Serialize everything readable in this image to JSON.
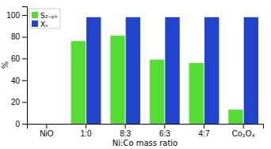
{
  "chart_data": {
    "type": "bar",
    "categories": [
      "NiO",
      "1:0",
      "8:3",
      "6:3",
      "4:7",
      "Co₃O₄"
    ],
    "series": [
      {
        "name": "S₂₋ₚₕ",
        "color": "#55dd33",
        "values": [
          0,
          76,
          81,
          59,
          56,
          13
        ]
      },
      {
        "name": "Xᵥ",
        "color": "#2244cc",
        "values": [
          0,
          98,
          98,
          98,
          98,
          98
        ]
      }
    ],
    "xlabel": "Ni:Co mass ratio",
    "ylabel": "%",
    "ylim": [
      0,
      108
    ],
    "yticks": [
      0,
      20,
      40,
      60,
      80,
      100
    ],
    "grid": false,
    "legend": "upper left"
  }
}
